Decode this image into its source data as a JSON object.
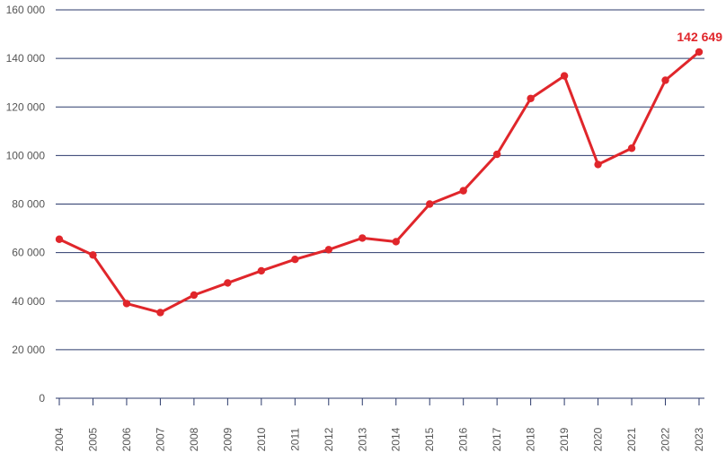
{
  "chart_data": {
    "type": "line",
    "title": "",
    "xlabel": "",
    "ylabel": "",
    "ylim": [
      0,
      160000
    ],
    "yticks": [
      0,
      20000,
      40000,
      60000,
      80000,
      100000,
      120000,
      140000,
      160000
    ],
    "ytick_labels": [
      "0",
      "20 000",
      "40 000",
      "60 000",
      "80 000",
      "100 000",
      "120 000",
      "140 000",
      "160 000"
    ],
    "grid": true,
    "x": [
      "2004",
      "2005",
      "2006",
      "2007",
      "2008",
      "2009",
      "2010",
      "2011",
      "2012",
      "2013",
      "2014",
      "2015",
      "2016",
      "2017",
      "2018",
      "2019",
      "2020",
      "2021",
      "2022",
      "2023"
    ],
    "series": [
      {
        "values": [
          65500,
          59000,
          39000,
          35300,
          42500,
          47500,
          52500,
          57200,
          61200,
          66000,
          64500,
          80000,
          85500,
          100500,
          123500,
          132800,
          96300,
          103000,
          131000,
          142649
        ]
      }
    ],
    "annotations": [
      {
        "x": "2023",
        "text": "142 649"
      }
    ],
    "colors": {
      "line": "#e0262b",
      "grid": "#2b3a6b",
      "label": "#e0262b"
    }
  }
}
